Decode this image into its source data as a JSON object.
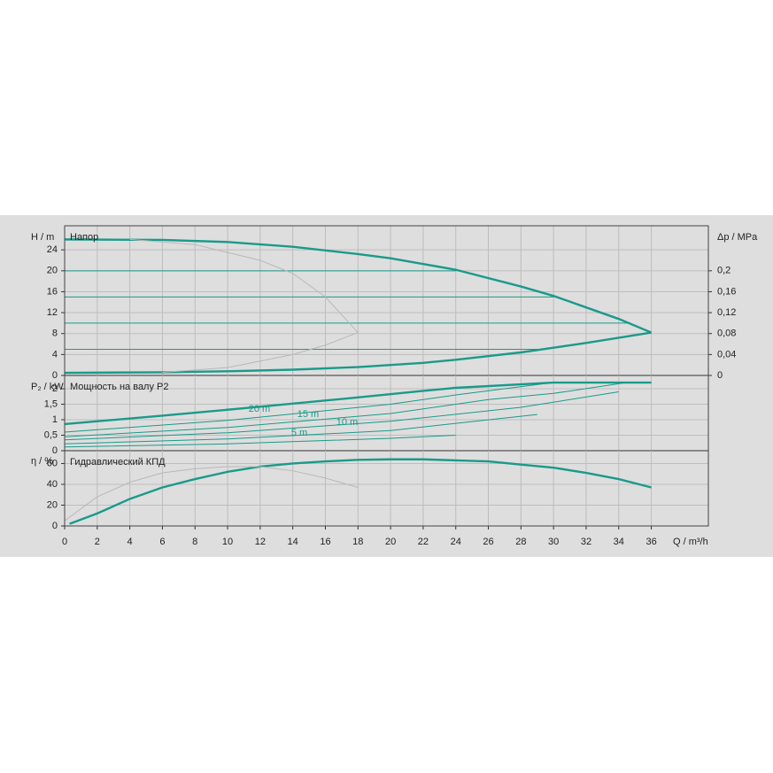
{
  "chart_data": [
    {
      "type": "line",
      "title": "Напор",
      "y_label": "H / m",
      "y2_label": "Δp / MPa",
      "xlim": [
        0,
        39.5
      ],
      "xticks": [
        0,
        2,
        4,
        6,
        8,
        10,
        12,
        14,
        16,
        18,
        20,
        22,
        24,
        26,
        28,
        30,
        32,
        34,
        36
      ],
      "ylim": [
        0,
        28.6
      ],
      "yticks": [
        0,
        4,
        8,
        12,
        16,
        20,
        24
      ],
      "y2lim": [
        0,
        0.286
      ],
      "y2ticks": [
        0,
        {
          "value": 0.04,
          "label": "0,04"
        },
        {
          "value": 0.08,
          "label": "0,08"
        },
        {
          "value": 0.12,
          "label": "0,12"
        },
        {
          "value": 0.16,
          "label": "0,16"
        },
        {
          "value": 0.2,
          "label": "0,2"
        }
      ],
      "grid": true,
      "series": [
        {
          "color": "#1a9a8a",
          "line_width": 2.4,
          "x": [
            0,
            6,
            10,
            14,
            18,
            20,
            24,
            28,
            30,
            32,
            34,
            36
          ],
          "values": [
            26,
            25.9,
            25.5,
            24.6,
            23.2,
            22.4,
            20.2,
            17,
            15.2,
            13,
            10.8,
            8.2
          ]
        },
        {
          "color": "#1a9a8a",
          "line_width": 2.4,
          "x": [
            0,
            6,
            10,
            14,
            18,
            22,
            24,
            28,
            30,
            32,
            36
          ],
          "values": [
            0.5,
            0.6,
            0.8,
            1.1,
            1.6,
            2.4,
            3,
            4.4,
            5.3,
            6.2,
            8.2
          ]
        },
        {
          "color": "#1a9a8a",
          "line_width": 1,
          "x": [
            0,
            24
          ],
          "values": [
            20,
            20
          ]
        },
        {
          "color": "#1a9a8a",
          "line_width": 1,
          "x": [
            0,
            30
          ],
          "values": [
            15,
            15
          ]
        },
        {
          "color": "#1a9a8a",
          "line_width": 1,
          "x": [
            0,
            34.5
          ],
          "values": [
            10,
            10
          ]
        },
        {
          "color": "#1a9a8a",
          "line_width": 1,
          "x": [
            0,
            29.5
          ],
          "values": [
            5,
            5
          ]
        },
        {
          "color": "#b8b8b8",
          "line_width": 1,
          "x": [
            4,
            8,
            12,
            14,
            16,
            18
          ],
          "values": [
            26,
            25,
            22,
            19.5,
            15,
            8.2
          ]
        },
        {
          "color": "#b8b8b8",
          "line_width": 1,
          "x": [
            6,
            10,
            14,
            16,
            18
          ],
          "values": [
            0.6,
            1.5,
            4,
            5.8,
            8.2
          ]
        }
      ]
    },
    {
      "type": "line",
      "title": "Мощность на валу P2",
      "y_label": "P₂ / kW",
      "xlim": [
        0,
        39.5
      ],
      "xticks": [
        0,
        2,
        4,
        6,
        8,
        10,
        12,
        14,
        16,
        18,
        20,
        22,
        24,
        26,
        28,
        30,
        32,
        34,
        36
      ],
      "ylim": [
        0,
        2.43
      ],
      "yticks": [
        0,
        {
          "value": 0.5,
          "label": "0,5"
        },
        1,
        {
          "value": 1.5,
          "label": "1,5"
        },
        2
      ],
      "grid": true,
      "annotations": [
        "20 m",
        "15 m",
        "10 m",
        "5 m"
      ],
      "series": [
        {
          "color": "#1a9a8a",
          "line_width": 2.4,
          "x": [
            0,
            6,
            12,
            18,
            22,
            24,
            30,
            36
          ],
          "values": [
            0.86,
            1.13,
            1.42,
            1.72,
            1.93,
            2.03,
            2.2,
            2.2
          ]
        },
        {
          "color": "#1a9a8a",
          "line_width": 1,
          "x": [
            0,
            10,
            20,
            24,
            30,
            35
          ],
          "values": [
            0.6,
            0.98,
            1.5,
            1.8,
            2.2,
            2.2
          ]
        },
        {
          "color": "#1a9a8a",
          "line_width": 1,
          "x": [
            0,
            10,
            20,
            26,
            30,
            34.5
          ],
          "values": [
            0.45,
            0.75,
            1.2,
            1.65,
            1.85,
            2.2
          ]
        },
        {
          "color": "#1a9a8a",
          "line_width": 1,
          "x": [
            0,
            10,
            20,
            28,
            34
          ],
          "values": [
            0.35,
            0.58,
            0.95,
            1.4,
            1.9
          ]
        },
        {
          "color": "#1a9a8a",
          "line_width": 1,
          "x": [
            0,
            10,
            20,
            29
          ],
          "values": [
            0.22,
            0.38,
            0.65,
            1.17
          ]
        },
        {
          "color": "#1a9a8a",
          "line_width": 1,
          "x": [
            0,
            10,
            20,
            24
          ],
          "values": [
            0.12,
            0.22,
            0.4,
            0.5
          ]
        }
      ]
    },
    {
      "type": "line",
      "title": "Гидравлический КПД",
      "y_label": "η / %",
      "x_label": "Q / m³/h",
      "xlim": [
        0,
        39.5
      ],
      "xticks": [
        0,
        2,
        4,
        6,
        8,
        10,
        12,
        14,
        16,
        18,
        20,
        22,
        24,
        26,
        28,
        30,
        32,
        34,
        36
      ],
      "ylim": [
        0,
        72.3
      ],
      "yticks": [
        0,
        20,
        40,
        60
      ],
      "grid": true,
      "series": [
        {
          "color": "#1a9a8a",
          "line_width": 2.4,
          "x": [
            0.3,
            2,
            4,
            6,
            8,
            10,
            12,
            14,
            16,
            18,
            20,
            22,
            24,
            26,
            28,
            30,
            32,
            34,
            36
          ],
          "values": [
            2,
            12,
            26,
            37,
            45,
            52,
            57,
            60,
            62,
            63.5,
            64,
            64,
            63,
            62,
            59,
            56,
            51,
            45,
            37
          ]
        },
        {
          "color": "#b8b8b8",
          "line_width": 1,
          "x": [
            0,
            2,
            4,
            6,
            8,
            10,
            12,
            14,
            16,
            18
          ],
          "values": [
            5,
            28,
            42,
            51,
            55,
            57,
            57,
            53,
            46,
            37
          ]
        }
      ]
    }
  ]
}
